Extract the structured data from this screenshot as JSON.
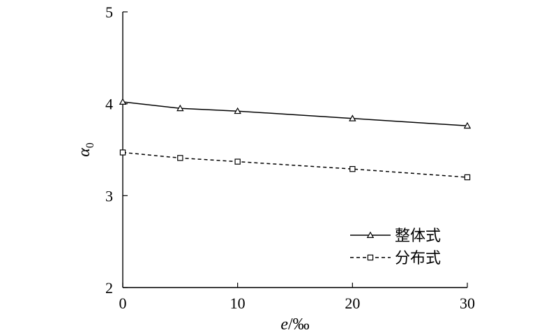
{
  "chart_data": {
    "type": "line",
    "x": [
      0,
      5,
      10,
      20,
      30
    ],
    "series": [
      {
        "name": "整体式",
        "values": [
          4.02,
          3.95,
          3.92,
          3.84,
          3.76
        ],
        "marker": "triangle",
        "line_style": "solid"
      },
      {
        "name": "分布式",
        "values": [
          3.47,
          3.41,
          3.37,
          3.29,
          3.2
        ],
        "marker": "square",
        "line_style": "dashed"
      }
    ],
    "xlabel": "e/‰",
    "ylabel": "α0",
    "xlim": [
      0,
      30
    ],
    "ylim": [
      2,
      5
    ],
    "x_ticks": [
      "0",
      "10",
      "20",
      "30"
    ],
    "y_ticks": [
      "2",
      "3",
      "4",
      "5"
    ],
    "grid": false,
    "legend_position": "bottom-right",
    "colors": {
      "line": "#000000",
      "background": "#ffffff"
    }
  }
}
